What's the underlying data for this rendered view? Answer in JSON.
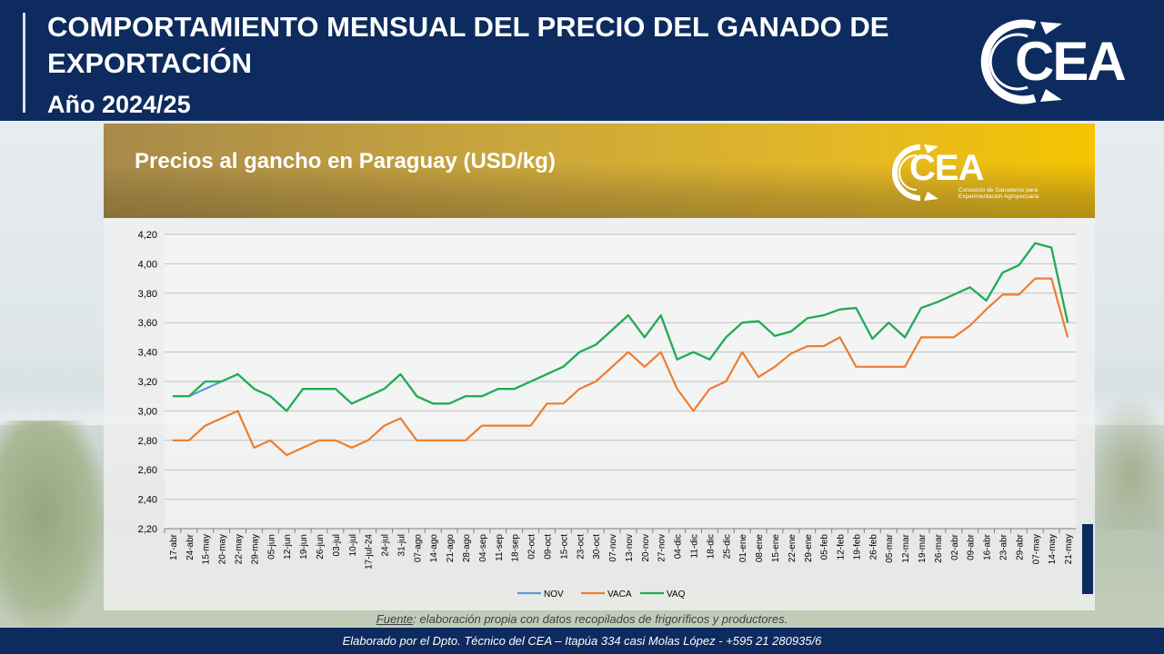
{
  "header": {
    "title": "COMPORTAMIENTO MENSUAL DEL PRECIO DEL GANADO DE EXPORTACIÓN",
    "year": "Año 2024/25"
  },
  "logo": {
    "text": "CEA"
  },
  "panel": {
    "title": "Precios al gancho en Paraguay (USD/kg)",
    "logo_text": "CEA",
    "logo_sub": "Consorcio de Ganaderos para Experimentación Agropecuaria"
  },
  "source": {
    "label": "Fuente",
    "text": ": elaboración propia con datos recopilados de frigoríficos y productores."
  },
  "footer": {
    "text": "Elaborado por el Dpto. Técnico del CEA – Itapúa 334 casi Molas López - +595 21 280935/6"
  },
  "colors": {
    "navy": "#0d2b5e",
    "nov": "#5b9bd5",
    "vaca": "#ed7d31",
    "vaq": "#1fae4e"
  },
  "chart_data": {
    "type": "line",
    "ylim": [
      2.2,
      4.2
    ],
    "yticks": [
      "4,20",
      "4,00",
      "3,80",
      "3,60",
      "3,40",
      "3,20",
      "3,00",
      "2,80",
      "2,60",
      "2,40",
      "2,20"
    ],
    "grid": true,
    "legend_position": "bottom",
    "x": [
      "17-abr",
      "24-abr",
      "15-may",
      "20-may",
      "22-may",
      "29-may",
      "05-jun",
      "12-jun",
      "19-jun",
      "26-jun",
      "03-jul",
      "10-jul",
      "17-jul-24",
      "24-jul",
      "31-jul",
      "07-ago",
      "14-ago",
      "21-ago",
      "28-ago",
      "04-sep",
      "11-sep",
      "18-sep",
      "02-oct",
      "09-oct",
      "15-oct",
      "23-oct",
      "30-oct",
      "07-nov",
      "13-nov",
      "20-nov",
      "27-nov",
      "04-dic",
      "11-dic",
      "18-dic",
      "25-dic",
      "01-ene",
      "08-ene",
      "15-ene",
      "22-ene",
      "29-ene",
      "05-feb",
      "12-feb",
      "19-feb",
      "26-feb",
      "05-mar",
      "12-mar",
      "19-mar",
      "26-mar",
      "02-abr",
      "09-abr",
      "16-abr",
      "23-abr",
      "29-abr",
      "07-may",
      "14-may",
      "21-may"
    ],
    "series": [
      {
        "name": "NOV",
        "color": "#5b9bd5",
        "values": [
          3.1,
          3.1,
          3.15,
          3.2,
          3.25,
          3.15,
          3.1,
          3.0,
          3.15,
          3.15,
          3.15,
          3.05,
          3.1,
          3.15,
          3.25,
          3.1,
          3.05,
          3.05,
          3.1,
          3.1,
          3.15,
          3.15,
          3.2,
          3.25,
          3.3,
          3.4,
          3.45,
          3.55,
          3.65,
          3.5,
          3.65,
          3.35,
          3.4,
          3.35,
          3.5,
          3.6,
          3.61,
          3.51,
          3.54,
          3.63,
          3.65,
          3.69,
          3.7,
          3.49,
          3.6,
          3.5,
          3.7,
          3.74,
          3.79,
          3.84,
          3.75,
          3.94,
          3.99,
          4.14,
          4.11,
          3.6
        ]
      },
      {
        "name": "VACA",
        "color": "#ed7d31",
        "values": [
          2.8,
          2.8,
          2.9,
          2.95,
          3.0,
          2.75,
          2.8,
          2.7,
          2.75,
          2.8,
          2.8,
          2.75,
          2.8,
          2.9,
          2.95,
          2.8,
          2.8,
          2.8,
          2.8,
          2.9,
          2.9,
          2.9,
          2.9,
          3.05,
          3.05,
          3.15,
          3.2,
          3.3,
          3.4,
          3.3,
          3.4,
          3.15,
          3.0,
          3.15,
          3.2,
          3.4,
          3.23,
          3.3,
          3.39,
          3.44,
          3.44,
          3.5,
          3.3,
          3.3,
          3.3,
          3.3,
          3.5,
          3.5,
          3.5,
          3.58,
          3.69,
          3.79,
          3.79,
          3.9,
          3.9,
          3.5
        ]
      },
      {
        "name": "VAQ",
        "color": "#1fae4e",
        "values": [
          3.1,
          3.1,
          3.2,
          3.2,
          3.25,
          3.15,
          3.1,
          3.0,
          3.15,
          3.15,
          3.15,
          3.05,
          3.1,
          3.15,
          3.25,
          3.1,
          3.05,
          3.05,
          3.1,
          3.1,
          3.15,
          3.15,
          3.2,
          3.25,
          3.3,
          3.4,
          3.45,
          3.55,
          3.65,
          3.5,
          3.65,
          3.35,
          3.4,
          3.35,
          3.5,
          3.6,
          3.61,
          3.51,
          3.54,
          3.63,
          3.65,
          3.69,
          3.7,
          3.49,
          3.6,
          3.5,
          3.7,
          3.74,
          3.79,
          3.84,
          3.75,
          3.94,
          3.99,
          4.14,
          4.11,
          3.6
        ]
      }
    ]
  }
}
